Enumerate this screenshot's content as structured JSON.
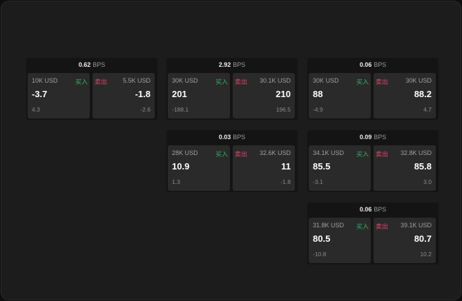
{
  "labels": {
    "unit": "BPS",
    "buy": "买入",
    "sell": "卖出"
  },
  "colors": {
    "buy": "#2fb36a",
    "sell": "#e0456f"
  },
  "cards": [
    {
      "spread": "0.62",
      "buy_size": "10K USD",
      "buy_price": "-3.7",
      "buy_change": "4.3",
      "sell_size": "5.5K USD",
      "sell_price": "-1.8",
      "sell_change": "-2.6"
    },
    {
      "spread": "2.92",
      "buy_size": "30K USD",
      "buy_price": "201",
      "buy_change": "-188.1",
      "sell_size": "30.1K USD",
      "sell_price": "210",
      "sell_change": "196.5"
    },
    {
      "spread": "0.06",
      "buy_size": "30K USD",
      "buy_price": "88",
      "buy_change": "-4.9",
      "sell_size": "30K USD",
      "sell_price": "88.2",
      "sell_change": "4.7"
    },
    {
      "spread": "0.03",
      "buy_size": "28K USD",
      "buy_price": "10.9",
      "buy_change": "1.3",
      "sell_size": "32.6K USD",
      "sell_price": "11",
      "sell_change": "-1.8"
    },
    {
      "spread": "0.09",
      "buy_size": "34.1K USD",
      "buy_price": "85.5",
      "buy_change": "-3.1",
      "sell_size": "32.8K USD",
      "sell_price": "85.8",
      "sell_change": "3.0"
    },
    {
      "spread": "0.06",
      "buy_size": "31.8K USD",
      "buy_price": "80.5",
      "buy_change": "-10.8",
      "sell_size": "39.1K USD",
      "sell_price": "80.7",
      "sell_change": "10.2"
    }
  ]
}
